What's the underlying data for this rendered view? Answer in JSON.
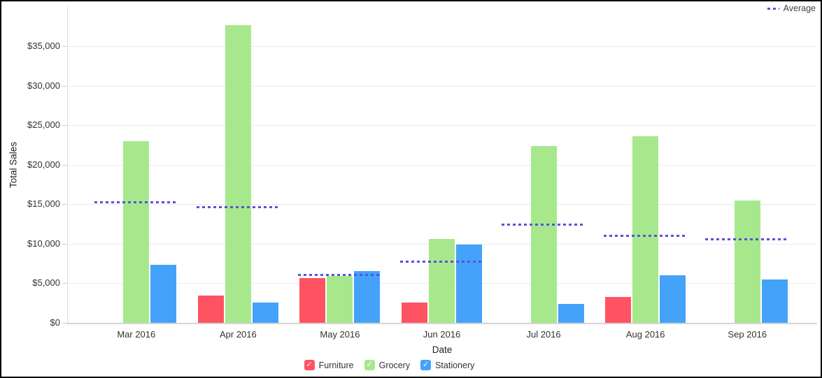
{
  "legend_top": {
    "label": "Average"
  },
  "chart_data": {
    "type": "bar",
    "title": "",
    "xlabel": "Date",
    "ylabel": "Total Sales",
    "categories": [
      "Mar 2016",
      "Apr 2016",
      "May 2016",
      "Jun 2016",
      "Jul 2016",
      "Aug 2016",
      "Sep 2016"
    ],
    "series": [
      {
        "name": "Furniture",
        "color": "#ff5363",
        "values": [
          null,
          3450,
          5650,
          2550,
          null,
          3300,
          null
        ]
      },
      {
        "name": "Grocery",
        "color": "#a8e88c",
        "values": [
          23000,
          37650,
          5900,
          10600,
          22350,
          23600,
          15500
        ]
      },
      {
        "name": "Stationery",
        "color": "#44a2fa",
        "values": [
          7350,
          2600,
          6550,
          9900,
          2400,
          6050,
          5500
        ]
      }
    ],
    "average_series": {
      "name": "Average",
      "color": "#5b51d8",
      "values": [
        15175,
        14567,
        6033,
        7683,
        12375,
        10983,
        10500
      ]
    },
    "y_ticks": [
      {
        "label": "$0",
        "value": 0
      },
      {
        "label": "$5,000",
        "value": 5000
      },
      {
        "label": "$10,000",
        "value": 10000
      },
      {
        "label": "$15,000",
        "value": 15000
      },
      {
        "label": "$20,000",
        "value": 20000
      },
      {
        "label": "$25,000",
        "value": 25000
      },
      {
        "label": "$30,000",
        "value": 30000
      },
      {
        "label": "$35,000",
        "value": 35000
      }
    ],
    "ylim": [
      0,
      40000
    ],
    "grid": true,
    "legend_position": "bottom",
    "legend_check_glyph": "✓"
  }
}
